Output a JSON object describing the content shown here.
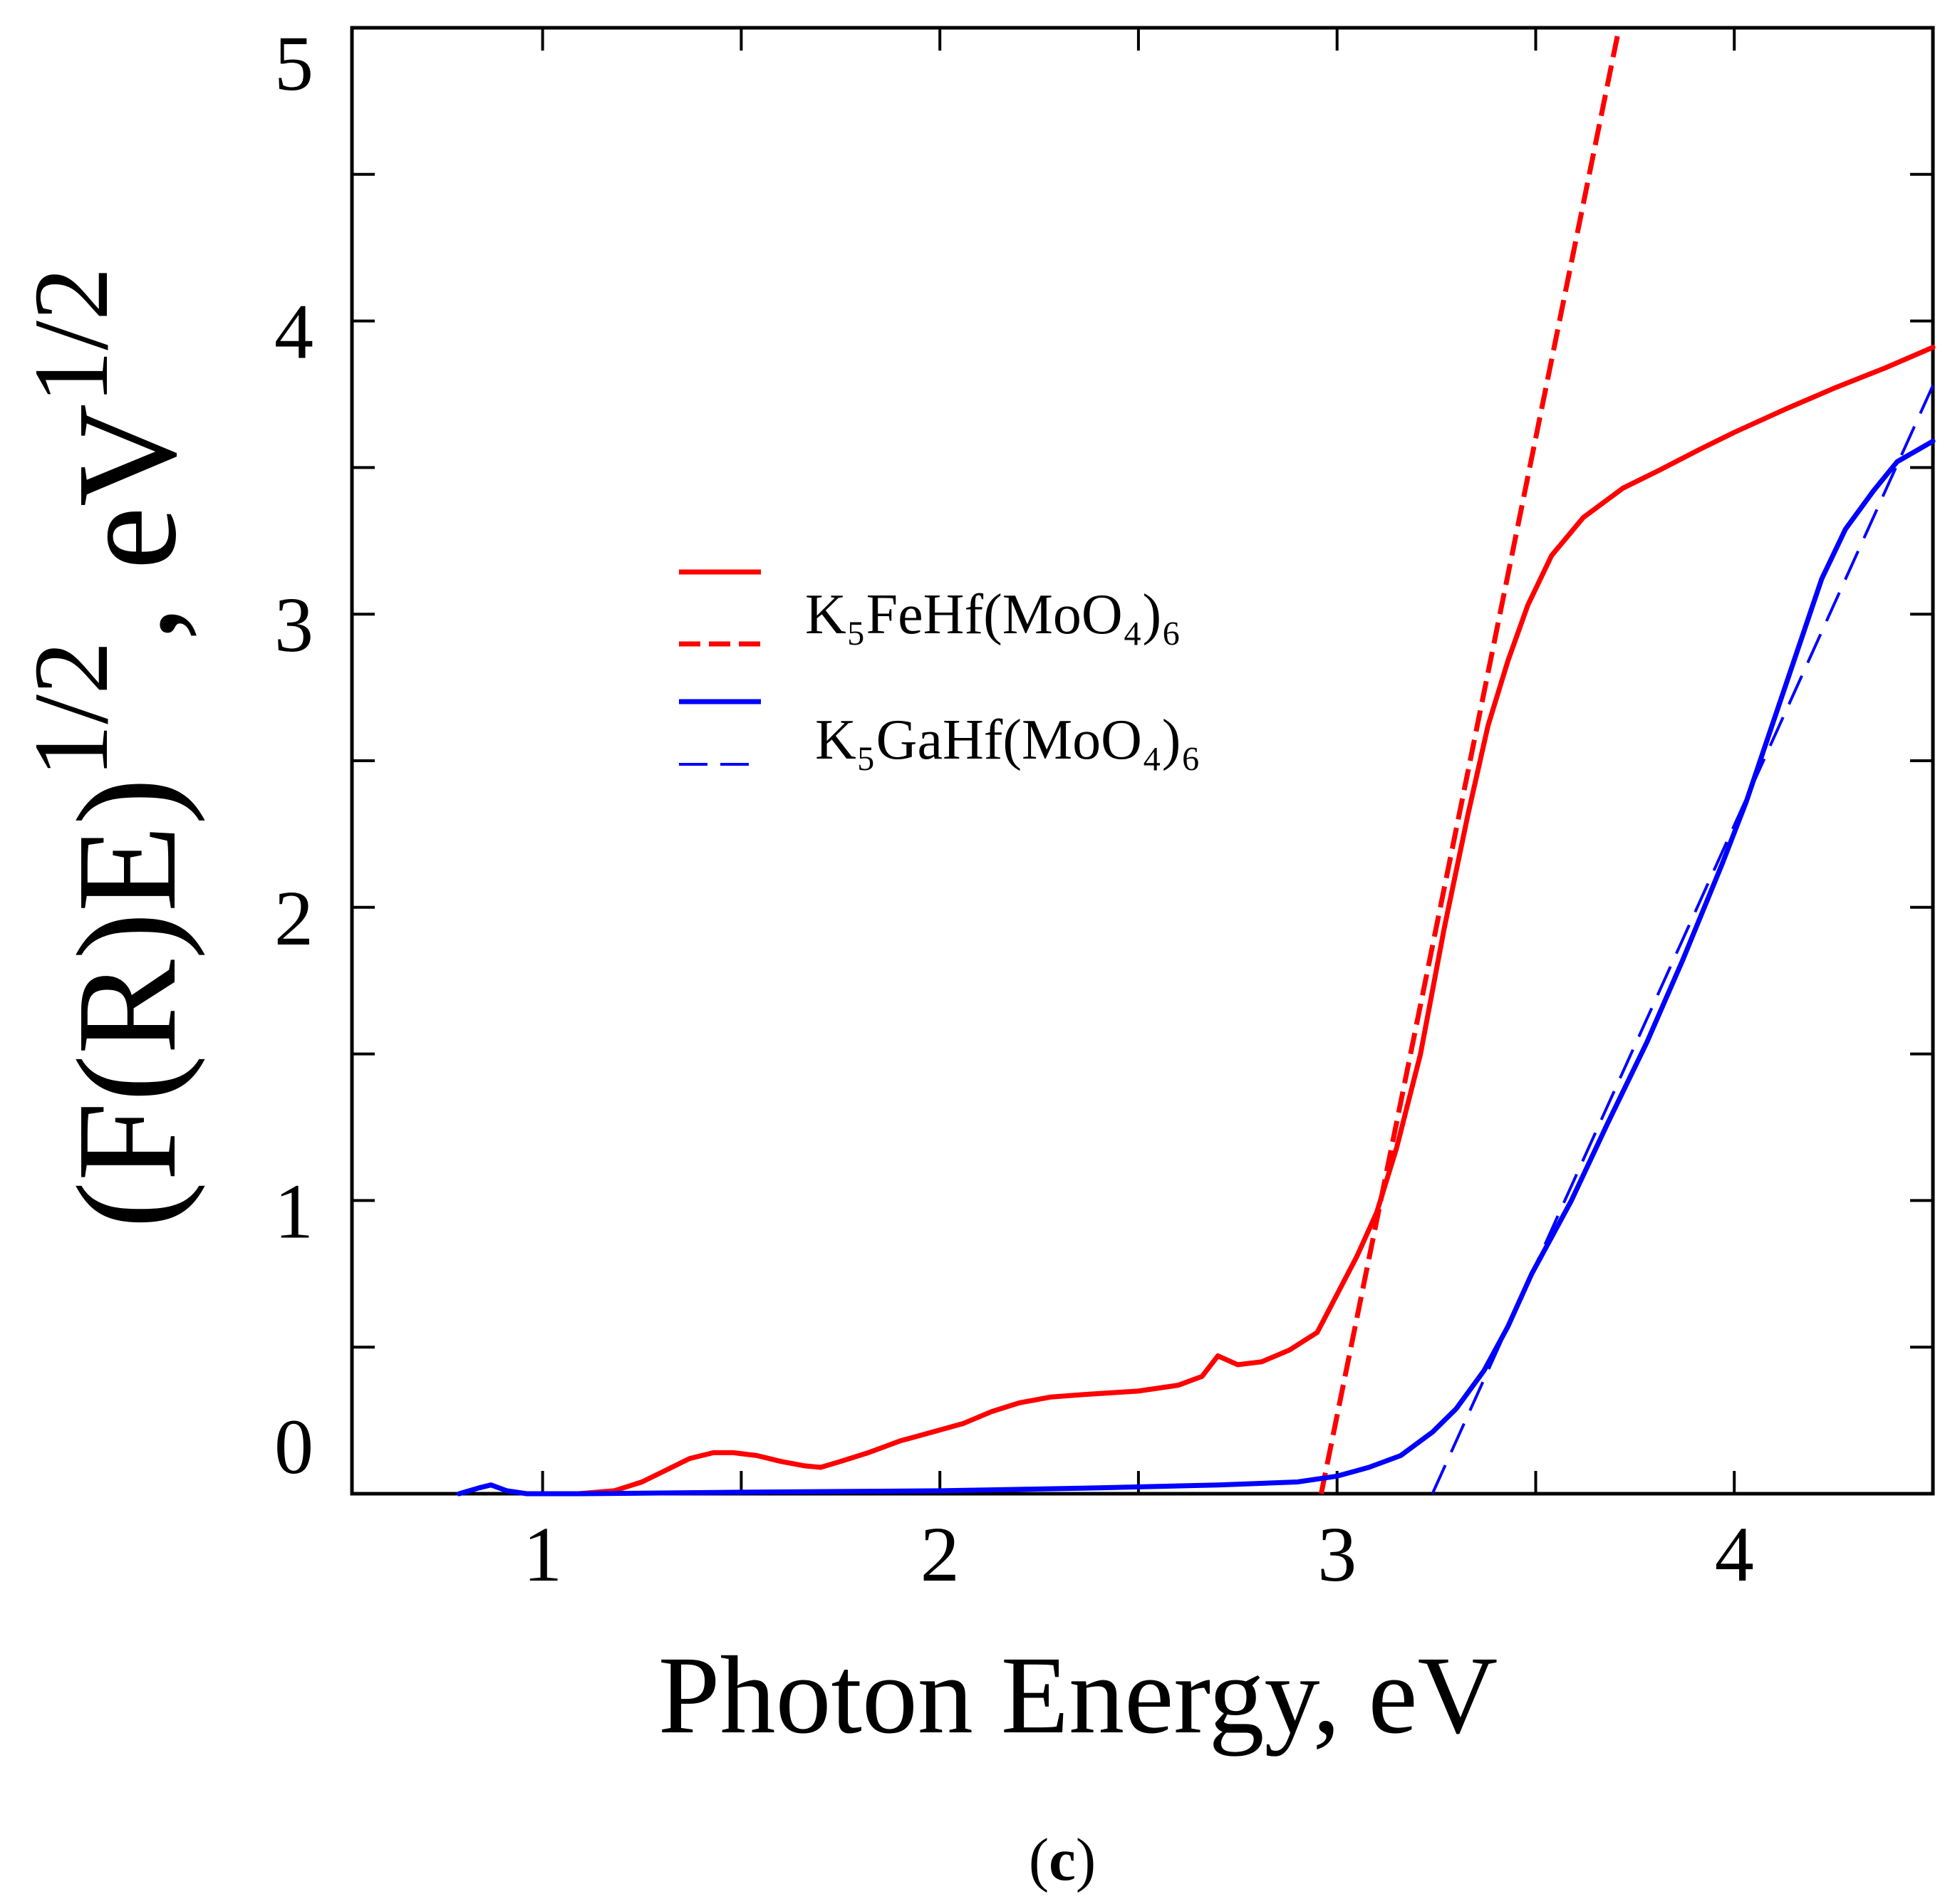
{
  "chart_data": {
    "type": "line",
    "xlabel": "Photon Energy, eV",
    "ylabel": {
      "quantity": "(F(R)E)",
      "quantity_exponent": "1/2",
      "unit": ", eV",
      "unit_exponent": "1/2"
    },
    "xlim": [
      0.52,
      4.5
    ],
    "ylim": [
      0,
      5
    ],
    "xticks": [
      1,
      2,
      3,
      4
    ],
    "xtick_labels": [
      "1",
      "2",
      "3",
      "4"
    ],
    "yticks": [
      0,
      1,
      2,
      3,
      4,
      5
    ],
    "ytick_labels": [
      "0",
      "1",
      "2",
      "3",
      "4",
      "5"
    ],
    "grid": false,
    "series": [
      {
        "name": "K₅FeHf(MoO₄)₆",
        "color": "#ff0000",
        "x": [
          1.09,
          1.18,
          1.25,
          1.31,
          1.37,
          1.43,
          1.48,
          1.54,
          1.6,
          1.66,
          1.7,
          1.75,
          1.82,
          1.9,
          1.98,
          2.06,
          2.13,
          2.2,
          2.28,
          2.38,
          2.5,
          2.6,
          2.66,
          2.7,
          2.75,
          2.81,
          2.88,
          2.95,
          3.0,
          3.05,
          3.1,
          3.15,
          3.21,
          3.27,
          3.33,
          3.38,
          3.43,
          3.48,
          3.54,
          3.62,
          3.72,
          3.81,
          3.91,
          4.0,
          4.13,
          4.25,
          4.38,
          4.5
        ],
        "y": [
          0.0,
          0.01,
          0.04,
          0.08,
          0.12,
          0.14,
          0.14,
          0.13,
          0.11,
          0.095,
          0.09,
          0.11,
          0.14,
          0.18,
          0.21,
          0.24,
          0.28,
          0.31,
          0.33,
          0.34,
          0.35,
          0.37,
          0.4,
          0.47,
          0.44,
          0.45,
          0.49,
          0.55,
          0.68,
          0.81,
          0.96,
          1.18,
          1.5,
          1.93,
          2.32,
          2.62,
          2.84,
          3.03,
          3.2,
          3.33,
          3.43,
          3.49,
          3.56,
          3.62,
          3.7,
          3.77,
          3.84,
          3.91
        ],
        "fit": {
          "x": [
            2.96,
            3.71
          ],
          "y": [
            0,
            5
          ]
        }
      },
      {
        "name": "K₅GaHf(MoO₄)₆",
        "color": "#0000ff",
        "x": [
          0.79,
          0.84,
          0.87,
          0.91,
          0.96,
          1.1,
          1.5,
          2.0,
          2.4,
          2.7,
          2.9,
          3.0,
          3.08,
          3.16,
          3.24,
          3.3,
          3.37,
          3.43,
          3.49,
          3.59,
          3.68,
          3.78,
          3.87,
          3.97,
          4.03,
          4.09,
          4.16,
          4.22,
          4.28,
          4.35,
          4.41,
          4.5
        ],
        "y": [
          0.0,
          0.02,
          0.03,
          0.01,
          0.0,
          0.0,
          0.005,
          0.01,
          0.02,
          0.03,
          0.04,
          0.06,
          0.09,
          0.13,
          0.21,
          0.29,
          0.42,
          0.57,
          0.75,
          1.0,
          1.26,
          1.54,
          1.82,
          2.15,
          2.36,
          2.6,
          2.88,
          3.12,
          3.29,
          3.42,
          3.52,
          3.59
        ],
        "fit": {
          "x": [
            3.24,
            4.5
          ],
          "y": [
            0,
            3.78
          ]
        }
      }
    ]
  },
  "panel_label": {
    "prefix": "(",
    "letter": "c",
    "suffix": ")"
  }
}
